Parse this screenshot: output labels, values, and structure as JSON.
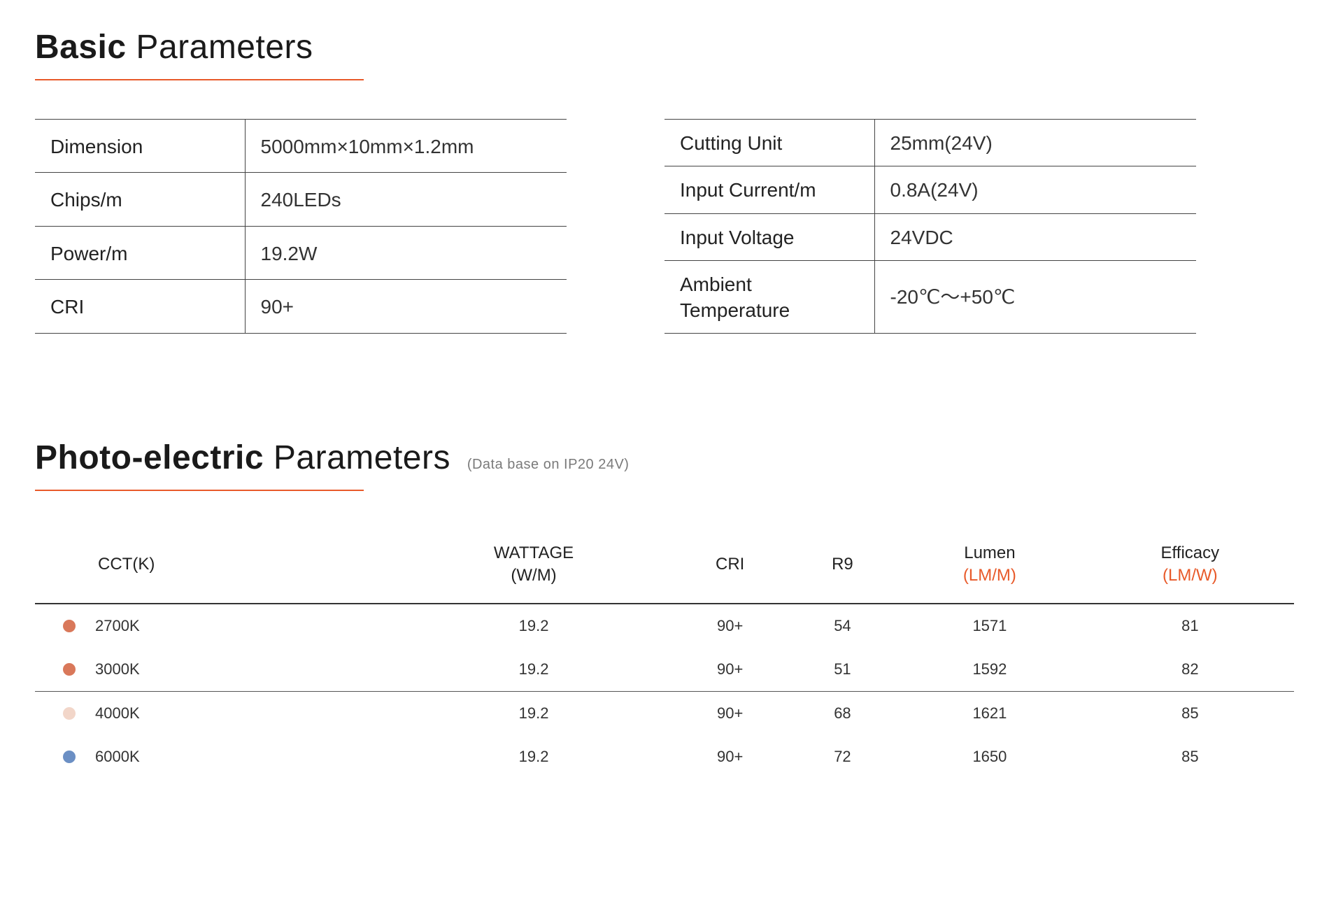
{
  "colors": {
    "accent": "#e85a2a",
    "text": "#222222",
    "border": "#444444",
    "muted": "#7a7a7a"
  },
  "section1": {
    "title_bold": "Basic",
    "title_rest": " Parameters",
    "left": [
      {
        "label": "Dimension",
        "value": "5000mm×10mm×1.2mm"
      },
      {
        "label": "Chips/m",
        "value": "240LEDs"
      },
      {
        "label": "Power/m",
        "value": "19.2W"
      },
      {
        "label": "CRI",
        "value": "90+"
      }
    ],
    "right": [
      {
        "label": "Cutting Unit",
        "value": "25mm(24V)"
      },
      {
        "label": "Input Current/m",
        "value": "0.8A(24V)"
      },
      {
        "label": "Input Voltage",
        "value": "24VDC"
      },
      {
        "label": "Ambient Temperature",
        "value": "-20℃～+50℃"
      }
    ]
  },
  "section2": {
    "title_bold": "Photo-electric",
    "title_rest": " Parameters",
    "note": "(Data base on IP20 24V)",
    "columns": [
      {
        "label": "CCT(K)",
        "sub": null,
        "sub_color": null
      },
      {
        "label": "WATTAGE",
        "sub": "(W/M)",
        "sub_color": "black"
      },
      {
        "label": "CRI",
        "sub": null,
        "sub_color": null
      },
      {
        "label": "R9",
        "sub": null,
        "sub_color": null
      },
      {
        "label": "Lumen",
        "sub": "(LM/M)",
        "sub_color": "orange"
      },
      {
        "label": "Efficacy",
        "sub": "(LM/W)",
        "sub_color": "orange"
      }
    ],
    "rows": [
      {
        "swatch": "#d9785a",
        "cct": "2700K",
        "wattage": "19.2",
        "cri": "90+",
        "r9": "54",
        "lumen": "1571",
        "efficacy": "81",
        "border": false
      },
      {
        "swatch": "#d9785a",
        "cct": "3000K",
        "wattage": "19.2",
        "cri": "90+",
        "r9": "51",
        "lumen": "1592",
        "efficacy": "82",
        "border": true
      },
      {
        "swatch": "#f2d6c9",
        "cct": "4000K",
        "wattage": "19.2",
        "cri": "90+",
        "r9": "68",
        "lumen": "1621",
        "efficacy": "85",
        "border": false
      },
      {
        "swatch": "#6b8fc4",
        "cct": "6000K",
        "wattage": "19.2",
        "cri": "90+",
        "r9": "72",
        "lumen": "1650",
        "efficacy": "85",
        "border": false
      }
    ]
  }
}
